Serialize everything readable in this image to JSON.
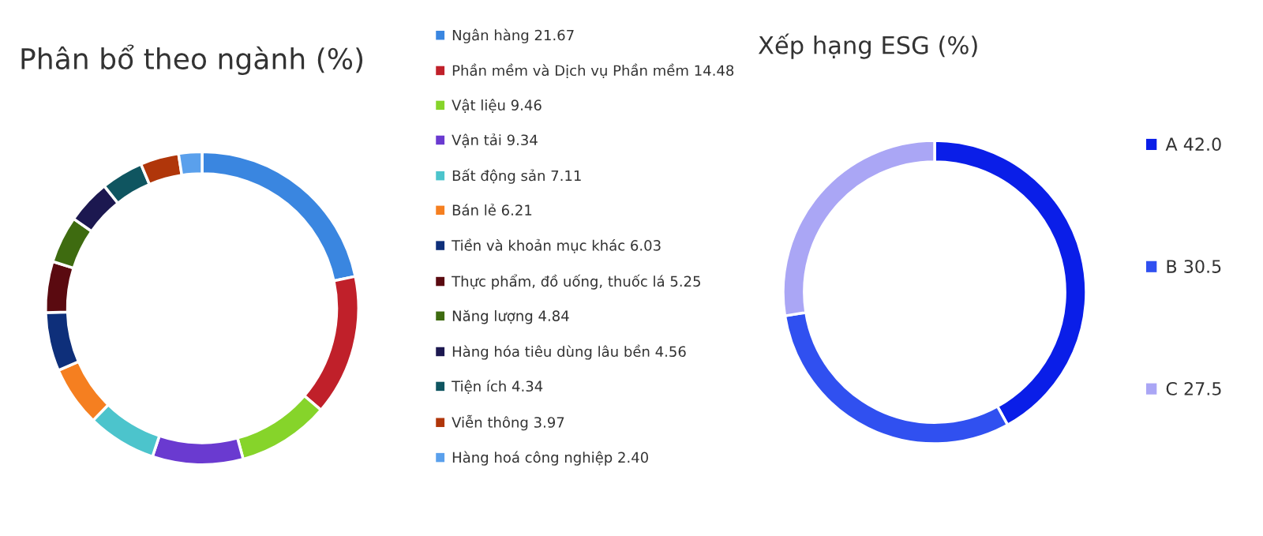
{
  "chart_data": [
    {
      "type": "donut",
      "title": "Phân bổ theo ngành (%)",
      "legend": "right",
      "data_labels": false,
      "categories": [
        "Ngân hàng",
        "Phần mềm và Dịch vụ Phần mềm",
        "Vật liệu",
        "Vận tải",
        "Bất động sản",
        "Bán lẻ",
        "Tiền và khoản mục khác",
        "Thực phẩm, đồ uống, thuốc lá",
        "Năng lượng",
        "Hàng hóa tiêu dùng lâu bền",
        "Tiện ích",
        "Viễn thông",
        "Hàng hoá công nghiệp"
      ],
      "values": [
        21.67,
        14.48,
        9.46,
        9.34,
        7.11,
        6.21,
        6.03,
        5.25,
        4.84,
        4.56,
        4.34,
        3.97,
        2.4
      ],
      "value_labels": [
        "21.67",
        "14.48",
        "9.46",
        "9.34",
        "7.11",
        "6.21",
        "6.03",
        "5.25",
        "4.84",
        "4.56",
        "4.34",
        "3.97",
        "2.40"
      ],
      "colors": [
        "#3a86e0",
        "#c0202a",
        "#86d42a",
        "#6a3ad0",
        "#4cc4cc",
        "#f57f20",
        "#0e2f7a",
        "#5a0a10",
        "#3e6b10",
        "#1c1850",
        "#0f5560",
        "#b0360a",
        "#5aa0ec"
      ]
    },
    {
      "type": "donut",
      "title": "Xếp hạng ESG (%)",
      "legend": "right",
      "data_labels": false,
      "categories": [
        "A",
        "B",
        "C"
      ],
      "values": [
        42.0,
        30.5,
        27.5
      ],
      "value_labels": [
        "42.0",
        "30.5",
        "27.5"
      ],
      "colors": [
        "#0a1ee8",
        "#3050f0",
        "#aaa6f5"
      ]
    }
  ]
}
